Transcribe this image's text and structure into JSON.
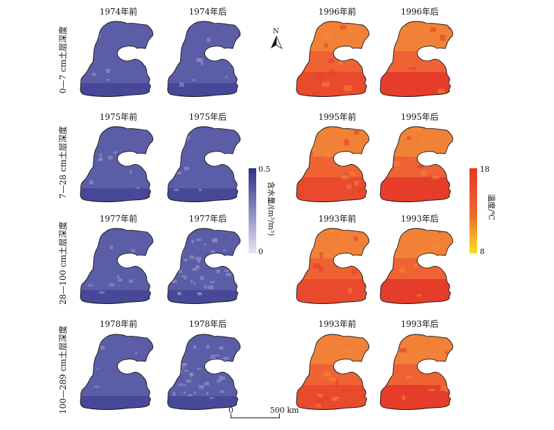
{
  "rows": [
    {
      "label": "0—7 cm土层深度",
      "moist_titles": [
        "1974年前",
        "1974年后"
      ],
      "temp_titles": [
        "1996年前",
        "1996年后"
      ]
    },
    {
      "label": "7—28 cm土层深度",
      "moist_titles": [
        "1975年前",
        "1975年后"
      ],
      "temp_titles": [
        "1995年前",
        "1995年后"
      ]
    },
    {
      "label": "28—100 cm土层深度",
      "moist_titles": [
        "1977年前",
        "1977年后"
      ],
      "temp_titles": [
        "1993年前",
        "1993年后"
      ]
    },
    {
      "label": "100—289 cm土层深度",
      "moist_titles": [
        "1978年前",
        "1978年后"
      ],
      "temp_titles": [
        "1993年前",
        "1993年后"
      ]
    }
  ],
  "moisture_legend": {
    "title": "含水量/(m³/m³)",
    "max": "0.5",
    "min": "0",
    "color_high": "#2e2f86",
    "color_low": "#e6e6f6"
  },
  "temperature_legend": {
    "title": "温度/℃",
    "max": "18",
    "min": "8",
    "color_high": "#e83526",
    "color_low": "#f5e21f"
  },
  "scale_bar": {
    "zero": "0",
    "distance": "500 km"
  },
  "north_arrow": {
    "label": "N"
  },
  "map_colors": {
    "moisture_base": "#5b5ea6",
    "moisture_dark": "#3f3f92",
    "moisture_light": "#8f8fcc",
    "temp_base": "#ef6234",
    "temp_orange": "#f28a3a",
    "temp_red": "#e43a2a"
  }
}
